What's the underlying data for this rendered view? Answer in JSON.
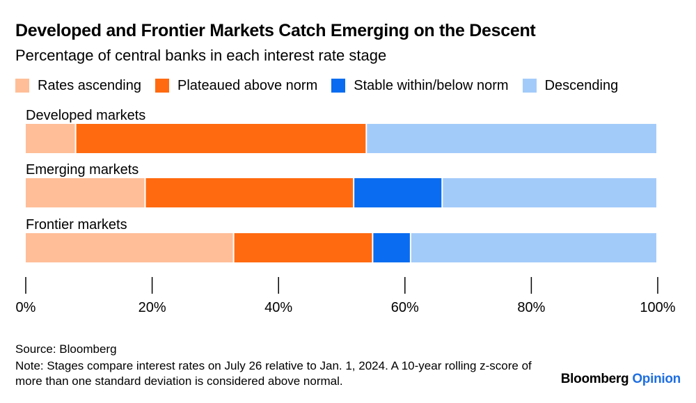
{
  "chart_data": {
    "type": "bar",
    "orientation": "horizontal-stacked",
    "title": "Developed and Frontier Markets Catch Emerging on the Descent",
    "subtitle": "Percentage of central banks in each interest rate stage",
    "categories": [
      "Developed markets",
      "Emerging markets",
      "Frontier markets"
    ],
    "series": [
      {
        "name": "Rates ascending",
        "color": "#ffbe98",
        "values": [
          8,
          19,
          33
        ]
      },
      {
        "name": "Plateaued above norm",
        "color": "#ff6a10",
        "values": [
          46,
          33,
          22
        ]
      },
      {
        "name": "Stable within/below norm",
        "color": "#0a6cf0",
        "values": [
          0,
          14,
          6
        ]
      },
      {
        "name": "Descending",
        "color": "#a3cbfa",
        "values": [
          46,
          34,
          39
        ]
      }
    ],
    "xlim": [
      0,
      100
    ],
    "xticks": [
      0,
      20,
      40,
      60,
      80,
      100
    ],
    "xtick_labels": [
      "0%",
      "20%",
      "40%",
      "60%",
      "80%",
      "100%"
    ],
    "xlabel": "",
    "ylabel": "",
    "legend_position": "top"
  },
  "footer": {
    "source": "Source: Bloomberg",
    "note": "Note: Stages compare interest rates on July 26 relative to Jan. 1, 2024. A 10-year rolling z-score of more than one standard deviation is considered above normal.",
    "brand_name": "Bloomberg",
    "brand_suffix": "Opinion"
  }
}
